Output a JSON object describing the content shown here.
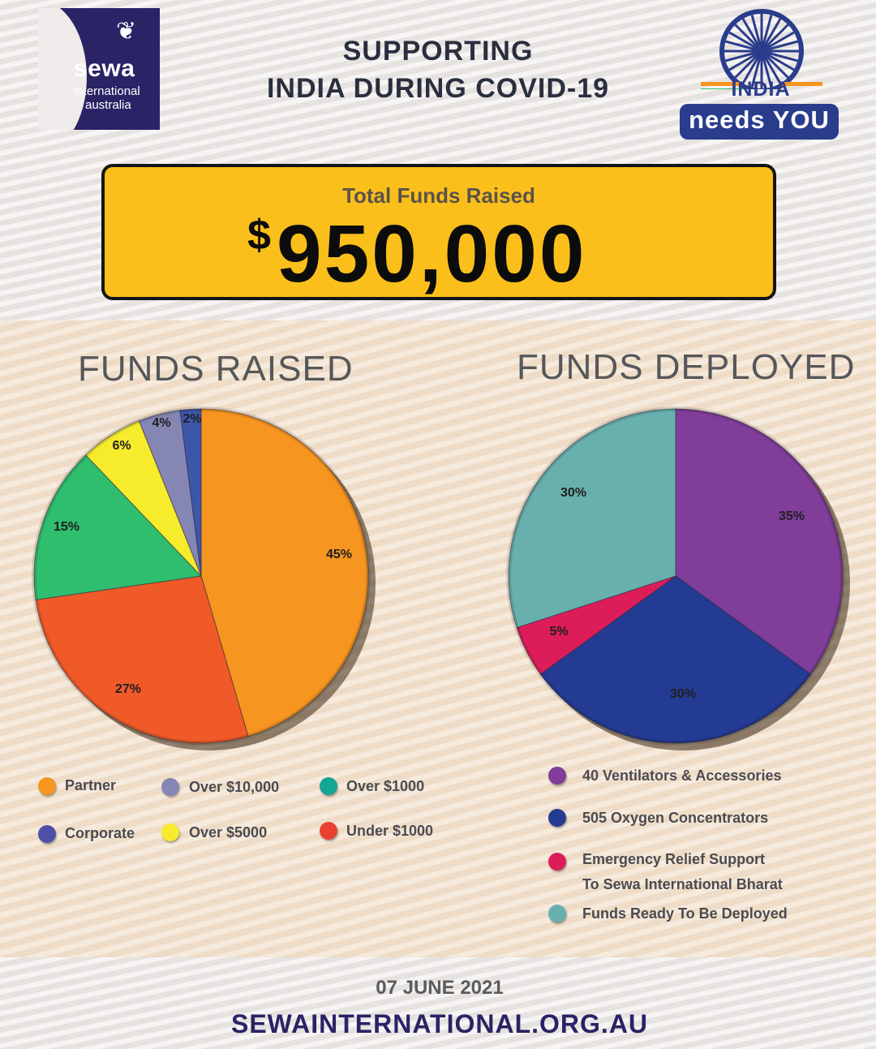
{
  "header": {
    "title_line1": "SUPPORTING",
    "title_line2": "INDIA DURING COVID-19"
  },
  "logo": {
    "name": "sewa",
    "line1": "international",
    "line2": "australia"
  },
  "india_logo": {
    "word": "INDIA",
    "tagline": "needs YOU"
  },
  "total": {
    "label": "Total Funds Raised",
    "currency": "$",
    "value": "950,000"
  },
  "colors": {
    "orange": "#f6951f",
    "red": "#f05a28",
    "green": "#2fbd6e",
    "yellow": "#f6ec2c",
    "lavender": "#8586b4",
    "blue": "#3d56a8",
    "purple": "#803d99",
    "navy": "#243b93",
    "crimson": "#dc1d59",
    "teal": "#67b0ad",
    "ochre": "#fbbf1b",
    "brand": "#2a2366"
  },
  "chart_data": [
    {
      "type": "pie",
      "title": "FUNDS RAISED",
      "slices": [
        {
          "label": "Partner",
          "value": 45,
          "display": "45%",
          "color": "#f6951f"
        },
        {
          "label": "Under $1000",
          "value": 27,
          "display": "27%",
          "color": "#f05a28"
        },
        {
          "label": "Over $1000",
          "value": 15,
          "display": "15%",
          "color": "#2fbd6e"
        },
        {
          "label": "Over $5000",
          "value": 6,
          "display": "6%",
          "color": "#f6ec2c"
        },
        {
          "label": "Over $10,000",
          "value": 4,
          "display": "4%",
          "color": "#8586b4"
        },
        {
          "label": "Corporate",
          "value": 2,
          "display": "2%",
          "color": "#3d56a8"
        }
      ],
      "legend": [
        {
          "label": "Partner",
          "color": "#f6951f"
        },
        {
          "label": "Over $10,000",
          "color": "#8586b4"
        },
        {
          "label": "Over $1000",
          "color": "#15a595"
        },
        {
          "label": "Corporate",
          "color": "#4d50a8"
        },
        {
          "label": "Over $5000",
          "color": "#f6ec2c"
        },
        {
          "label": "Under $1000",
          "color": "#e8412f"
        }
      ]
    },
    {
      "type": "pie",
      "title": "FUNDS DEPLOYED",
      "slices": [
        {
          "label": "40 Ventilators & Accessories",
          "value": 35,
          "display": "35%",
          "color": "#803d99"
        },
        {
          "label": "505 Oxygen Concentrators",
          "value": 30,
          "display": "30%",
          "color": "#243b93"
        },
        {
          "label": "Emergency Relief Support To Sewa International Bharat",
          "value": 5,
          "display": "5%",
          "color": "#dc1d59"
        },
        {
          "label": "Funds Ready To Be Deployed",
          "value": 30,
          "display": "30%",
          "color": "#67b0ad"
        }
      ],
      "legend": [
        {
          "label": "40 Ventilators & Accessories",
          "color": "#803d99"
        },
        {
          "label": "505 Oxygen Concentrators",
          "color": "#243b93"
        },
        {
          "label": "Emergency Relief Support",
          "label_line2": "To Sewa International Bharat",
          "color": "#dc1d59"
        },
        {
          "label": "Funds Ready To Be Deployed",
          "color": "#67b0ad"
        }
      ]
    }
  ],
  "footer": {
    "date": "07 JUNE 2021",
    "url": "SEWAINTERNATIONAL.ORG.AU"
  }
}
